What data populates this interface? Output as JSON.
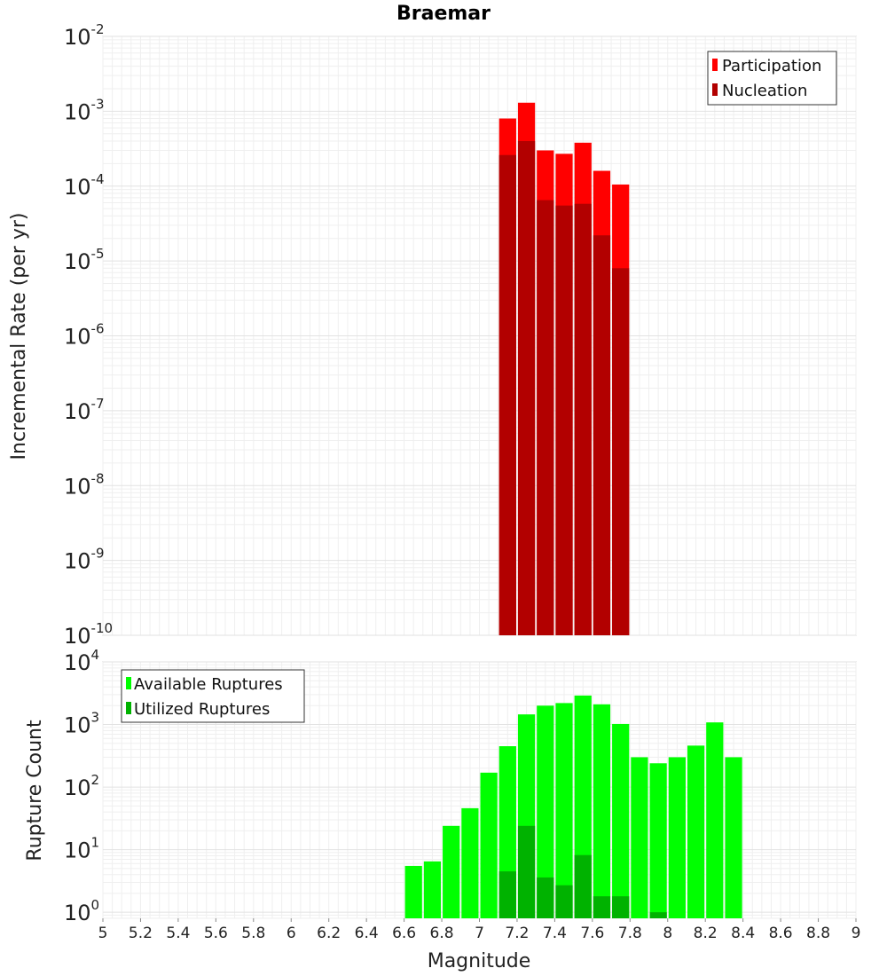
{
  "chart_data": [
    {
      "type": "bar",
      "title": "Braemar",
      "xlabel": "",
      "ylabel": "Incremental Rate (per yr)",
      "xlim": [
        5,
        9
      ],
      "ylim": [
        1e-10,
        0.01
      ],
      "yscale": "log",
      "ytick_exponents": [
        -10,
        -9,
        -8,
        -7,
        -6,
        -5,
        -4,
        -3,
        -2
      ],
      "bin_width": 0.1,
      "grid": true,
      "legend_position": "top-right",
      "series": [
        {
          "name": "Participation",
          "color": "#ff0000",
          "x": [
            7.15,
            7.25,
            7.35,
            7.45,
            7.55,
            7.65,
            7.75
          ],
          "values": [
            0.0008,
            0.0013,
            0.0003,
            0.00027,
            0.00038,
            0.00016,
            0.000105
          ]
        },
        {
          "name": "Nucleation",
          "color": "#b20000",
          "x": [
            7.15,
            7.25,
            7.35,
            7.45,
            7.55,
            7.65,
            7.75
          ],
          "values": [
            0.00026,
            0.0004,
            6.5e-05,
            5.5e-05,
            5.8e-05,
            2.2e-05,
            8e-06
          ]
        }
      ]
    },
    {
      "type": "bar",
      "title": "",
      "xlabel": "Magnitude",
      "ylabel": "Rupture Count",
      "xlim": [
        5,
        9
      ],
      "ylim": [
        0.8,
        10000.0
      ],
      "yscale": "log",
      "ytick_exponents": [
        0,
        1,
        2,
        3,
        4
      ],
      "xticks": [
        "5",
        "5.2",
        "5.4",
        "5.6",
        "5.8",
        "6",
        "6.2",
        "6.4",
        "6.6",
        "6.8",
        "7",
        "7.2",
        "7.4",
        "7.6",
        "7.8",
        "8",
        "8.2",
        "8.4",
        "8.6",
        "8.8",
        "9"
      ],
      "bin_width": 0.1,
      "grid": true,
      "legend_position": "top-left",
      "series": [
        {
          "name": "Available Ruptures",
          "color": "#00ff00",
          "x": [
            6.65,
            6.75,
            6.85,
            6.95,
            7.05,
            7.15,
            7.25,
            7.35,
            7.45,
            7.55,
            7.65,
            7.75,
            7.85,
            7.95,
            8.05,
            8.15,
            8.25,
            8.35
          ],
          "values": [
            5.5,
            6.5,
            24,
            46,
            170,
            450,
            1450,
            2000,
            2200,
            2900,
            2100,
            1020,
            300,
            240,
            300,
            460,
            1080,
            300
          ]
        },
        {
          "name": "Utilized Ruptures",
          "color": "#00b200",
          "x": [
            7.15,
            7.25,
            7.35,
            7.45,
            7.55,
            7.65,
            7.75,
            7.95
          ],
          "values": [
            4.5,
            24,
            3.6,
            2.7,
            8.2,
            1.8,
            1.8,
            1
          ]
        }
      ]
    }
  ]
}
